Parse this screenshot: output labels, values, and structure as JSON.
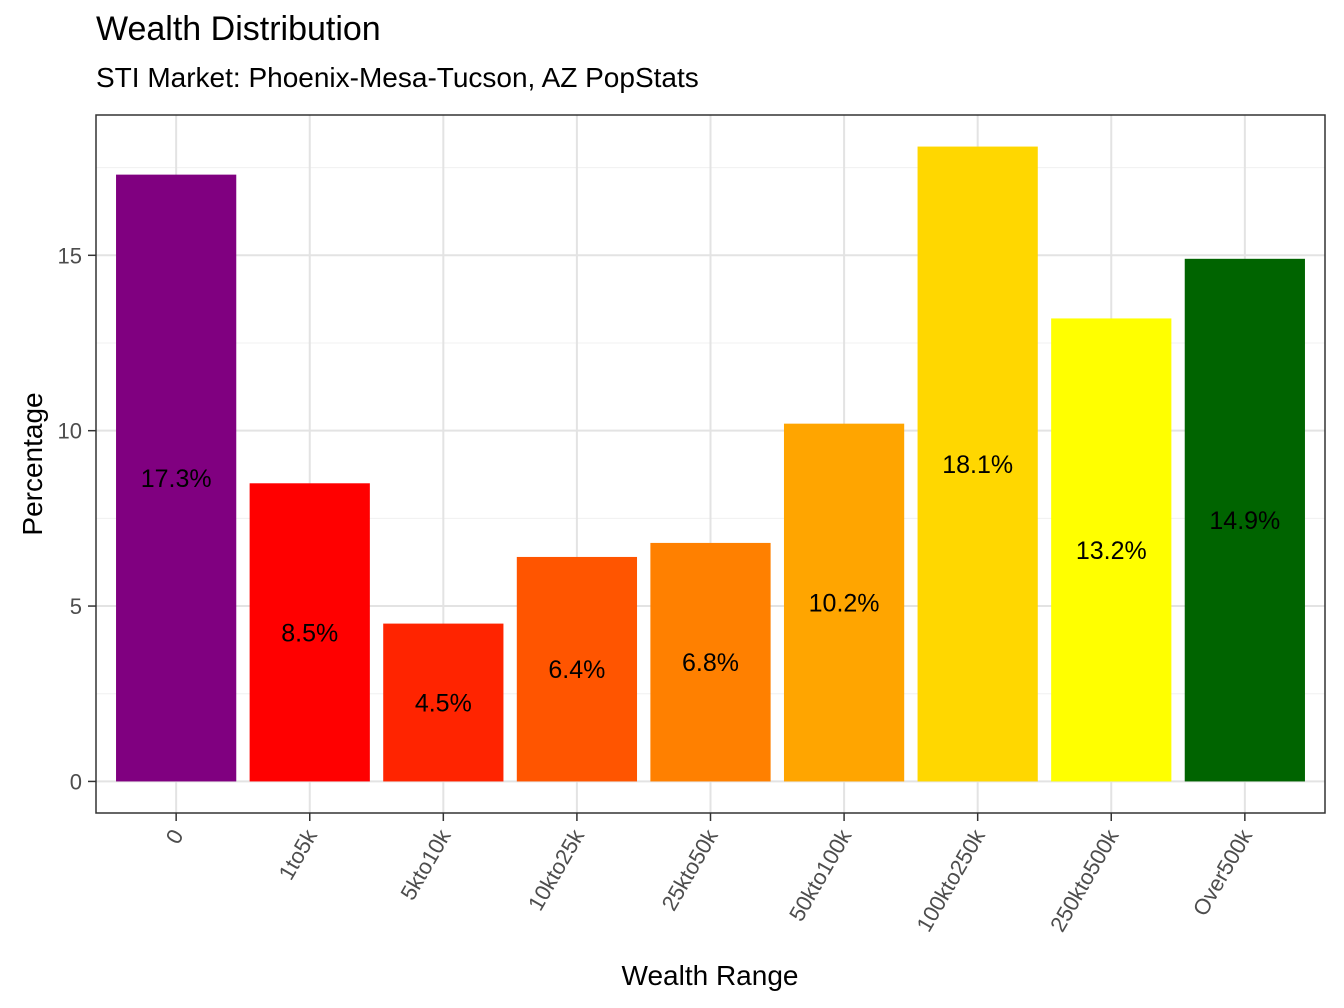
{
  "chart_data": {
    "type": "bar",
    "title": "Wealth Distribution",
    "subtitle": "STI Market: Phoenix-Mesa-Tucson, AZ PopStats",
    "xlabel": "Wealth Range",
    "ylabel": "Percentage",
    "categories": [
      "0",
      "1to5k",
      "5kto10k",
      "10kto25k",
      "25kto50k",
      "50kto100k",
      "100kto250k",
      "250kto500k",
      "Over500k"
    ],
    "values": [
      17.3,
      8.5,
      4.5,
      6.4,
      6.8,
      10.2,
      18.1,
      13.2,
      14.9
    ],
    "labels": [
      "17.3%",
      "8.5%",
      "4.5%",
      "6.4%",
      "6.8%",
      "10.2%",
      "18.1%",
      "13.2%",
      "14.9%"
    ],
    "colors": [
      "#800080",
      "#FF0000",
      "#FF2400",
      "#FF5500",
      "#FF8000",
      "#FFA500",
      "#FFD700",
      "#FFFF00",
      "#006400"
    ],
    "yticks": [
      0,
      5,
      10,
      15
    ],
    "ylim": [
      -0.9,
      19.0
    ],
    "grid": true,
    "legend": "none"
  }
}
